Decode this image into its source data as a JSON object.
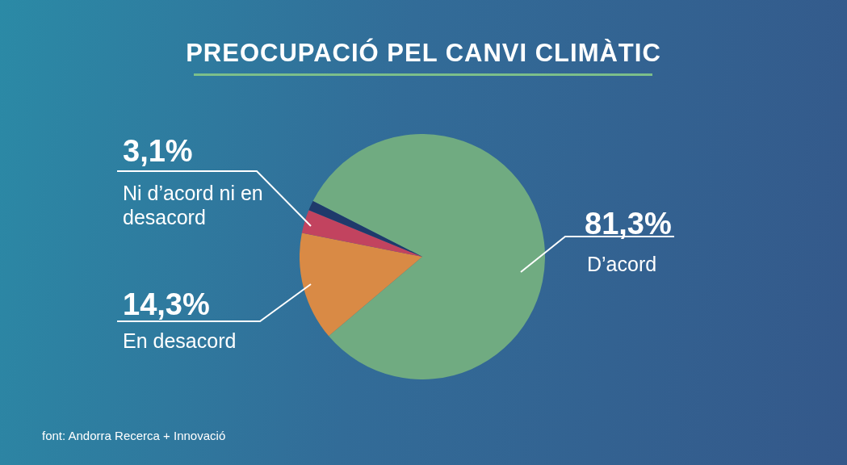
{
  "chart_data": {
    "type": "pie",
    "title": "PREOCUPACIÓ PEL CANVI CLIMÀTIC",
    "categories": [
      "D’acord",
      "En desacord",
      "Ni d’acord ni en desacord",
      null
    ],
    "values": [
      81.3,
      14.3,
      3.1,
      1.3
    ],
    "colors": [
      "#70ab81",
      "#d98a45",
      "#c2435f",
      "#1f3a6b"
    ],
    "value_labels": [
      "81,3%",
      "14,3%",
      "3,1%",
      null
    ],
    "legend": false,
    "annotations": [
      "font: Andorra Recerca + Innovació"
    ]
  }
}
